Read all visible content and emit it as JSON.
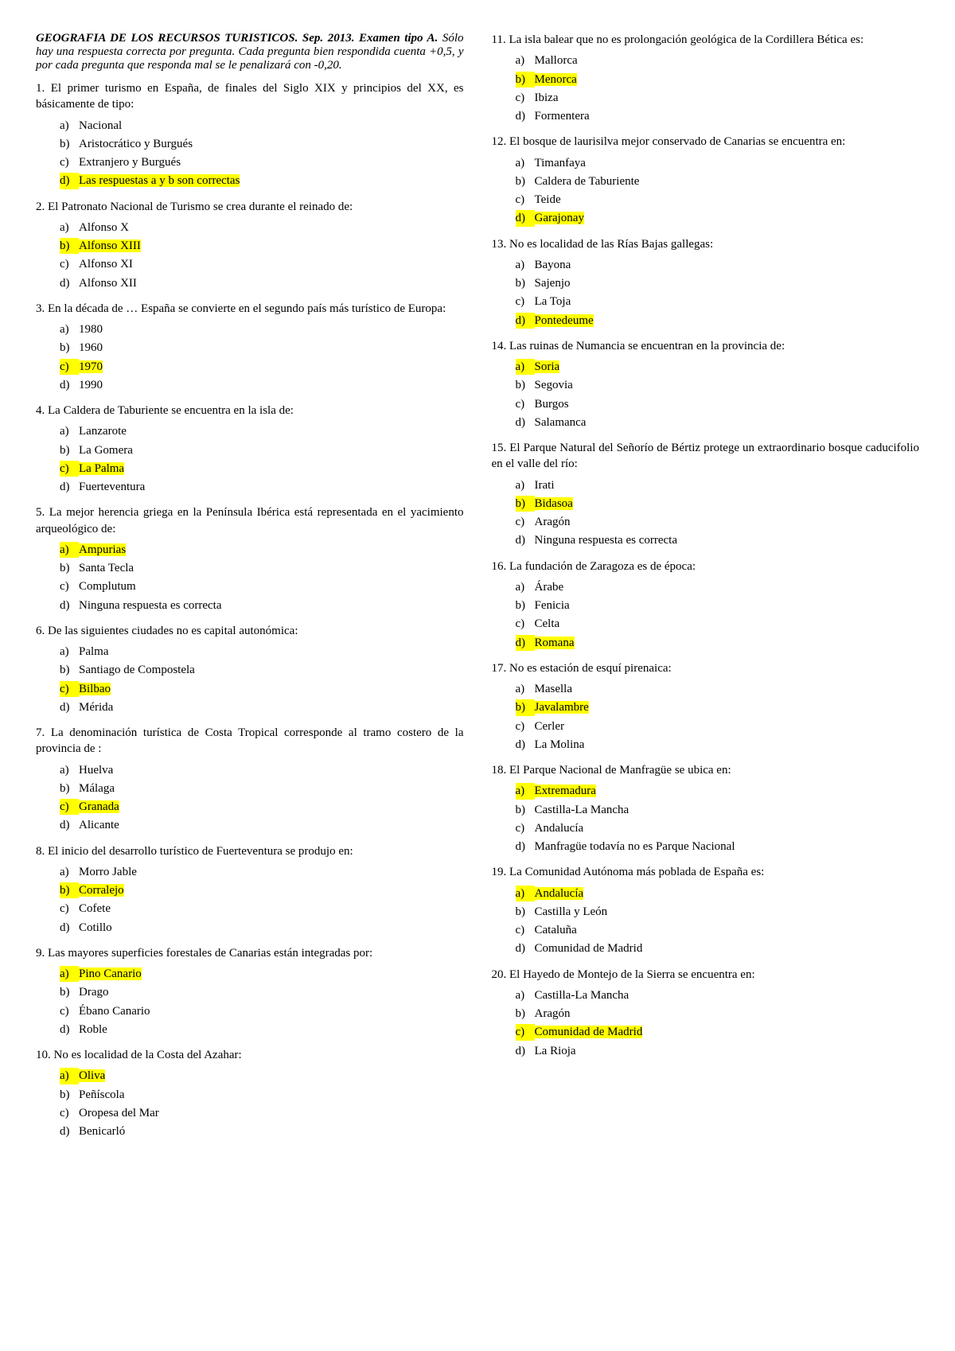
{
  "header": {
    "title": "GEOGRAFIA DE LOS RECURSOS TURISTICOS. Sep. 2013. Examen tipo A.",
    "instructions": " Sólo hay una respuesta correcta por pregunta. Cada pregunta bien respondida cuenta +0,5, y por cada pregunta que responda mal se le penalizará con -0,20."
  },
  "questions": [
    {
      "n": "1",
      "text": "El primer turismo en España, de finales del Siglo XIX y principios del XX, es básicamente de tipo:",
      "options": [
        {
          "l": "a)",
          "t": "Nacional",
          "h": false
        },
        {
          "l": "b)",
          "t": "Aristocrático y Burgués",
          "h": false
        },
        {
          "l": "c)",
          "t": "Extranjero y Burgués",
          "h": false
        },
        {
          "l": "d)",
          "t": "Las respuestas a y b son correctas",
          "h": true
        }
      ]
    },
    {
      "n": "2",
      "text": "El Patronato Nacional de Turismo se crea durante el reinado de:",
      "options": [
        {
          "l": "a)",
          "t": "Alfonso X",
          "h": false
        },
        {
          "l": "b)",
          "t": "Alfonso XIII",
          "h": true
        },
        {
          "l": "c)",
          "t": "Alfonso XI",
          "h": false
        },
        {
          "l": "d)",
          "t": "Alfonso XII",
          "h": false
        }
      ]
    },
    {
      "n": "3",
      "text": "En la década de … España se convierte en el segundo país más turístico de Europa:",
      "options": [
        {
          "l": "a)",
          "t": "1980",
          "h": false
        },
        {
          "l": "b)",
          "t": "1960",
          "h": false
        },
        {
          "l": "c)",
          "t": "1970",
          "h": true
        },
        {
          "l": "d)",
          "t": "1990",
          "h": false
        }
      ]
    },
    {
      "n": "4",
      "text": "La Caldera de Taburiente se encuentra en la isla de:",
      "options": [
        {
          "l": "a)",
          "t": "Lanzarote",
          "h": false
        },
        {
          "l": "b)",
          "t": "La Gomera",
          "h": false
        },
        {
          "l": "c)",
          "t": "La Palma",
          "h": true
        },
        {
          "l": "d)",
          "t": "Fuerteventura",
          "h": false
        }
      ]
    },
    {
      "n": "5",
      "text": "La mejor herencia griega en la Península Ibérica está representada en el yacimiento arqueológico de:",
      "options": [
        {
          "l": "a)",
          "t": "Ampurias",
          "h": true
        },
        {
          "l": "b)",
          "t": "Santa Tecla",
          "h": false
        },
        {
          "l": "c)",
          "t": "Complutum",
          "h": false
        },
        {
          "l": "d)",
          "t": "Ninguna respuesta es correcta",
          "h": false
        }
      ]
    },
    {
      "n": "6",
      "text": "De las siguientes ciudades no es capital autonómica:",
      "options": [
        {
          "l": "a)",
          "t": "Palma",
          "h": false
        },
        {
          "l": "b)",
          "t": "Santiago de Compostela",
          "h": false
        },
        {
          "l": "c)",
          "t": "Bilbao",
          "h": true
        },
        {
          "l": "d)",
          "t": "Mérida",
          "h": false
        }
      ]
    },
    {
      "n": "7",
      "text": "La denominación turística de Costa Tropical corresponde al tramo costero de la provincia de :",
      "options": [
        {
          "l": "a)",
          "t": "Huelva",
          "h": false
        },
        {
          "l": "b)",
          "t": "Málaga",
          "h": false
        },
        {
          "l": "c)",
          "t": "Granada",
          "h": true
        },
        {
          "l": "d)",
          "t": "Alicante",
          "h": false
        }
      ]
    },
    {
      "n": "8",
      "text": "El inicio del desarrollo turístico de Fuerteventura se produjo en:",
      "options": [
        {
          "l": "a)",
          "t": "Morro Jable",
          "h": false
        },
        {
          "l": "b)",
          "t": "Corralejo",
          "h": true
        },
        {
          "l": "c)",
          "t": "Cofete",
          "h": false
        },
        {
          "l": "d)",
          "t": "Cotillo",
          "h": false
        }
      ]
    },
    {
      "n": "9",
      "text": "Las mayores superficies forestales de Canarias están integradas por:",
      "options": [
        {
          "l": "a)",
          "t": "Pino Canario",
          "h": true
        },
        {
          "l": "b)",
          "t": "Drago",
          "h": false
        },
        {
          "l": "c)",
          "t": "Ébano Canario",
          "h": false
        },
        {
          "l": "d)",
          "t": "Roble",
          "h": false
        }
      ]
    },
    {
      "n": "10",
      "text": "No es localidad de la Costa del Azahar:",
      "options": [
        {
          "l": "a)",
          "t": "Oliva",
          "h": true
        },
        {
          "l": "b)",
          "t": "Peñíscola",
          "h": false
        },
        {
          "l": "c)",
          "t": "Oropesa del Mar",
          "h": false
        },
        {
          "l": "d)",
          "t": "Benicarló",
          "h": false
        }
      ]
    },
    {
      "n": "11",
      "text": "La isla balear que no es prolongación geológica de la Cordillera Bética es:",
      "options": [
        {
          "l": "a)",
          "t": "Mallorca",
          "h": false
        },
        {
          "l": "b)",
          "t": "Menorca",
          "h": true
        },
        {
          "l": "c)",
          "t": "Ibiza",
          "h": false
        },
        {
          "l": "d)",
          "t": "Formentera",
          "h": false
        }
      ]
    },
    {
      "n": "12",
      "text": "El bosque de laurisilva mejor conservado de Canarias se encuentra en:",
      "options": [
        {
          "l": "a)",
          "t": "Timanfaya",
          "h": false
        },
        {
          "l": "b)",
          "t": "Caldera de Taburiente",
          "h": false
        },
        {
          "l": "c)",
          "t": "Teide",
          "h": false
        },
        {
          "l": "d)",
          "t": "Garajonay",
          "h": true
        }
      ]
    },
    {
      "n": "13",
      "text": "No es localidad de las Rías Bajas gallegas:",
      "options": [
        {
          "l": "a)",
          "t": "Bayona",
          "h": false
        },
        {
          "l": "b)",
          "t": "Sajenjo",
          "h": false
        },
        {
          "l": "c)",
          "t": "La Toja",
          "h": false
        },
        {
          "l": "d)",
          "t": "Pontedeume",
          "h": true
        }
      ]
    },
    {
      "n": "14",
      "text": "Las ruinas de Numancia se encuentran en la provincia de:",
      "options": [
        {
          "l": "a)",
          "t": "Soria",
          "h": true
        },
        {
          "l": "b)",
          "t": "Segovia",
          "h": false
        },
        {
          "l": "c)",
          "t": "Burgos",
          "h": false
        },
        {
          "l": "d)",
          "t": "Salamanca",
          "h": false
        }
      ]
    },
    {
      "n": "15",
      "text": "El Parque Natural del Señorío de Bértiz protege un extraordinario bosque caducifolio en el valle del río:",
      "options": [
        {
          "l": "a)",
          "t": "Irati",
          "h": false
        },
        {
          "l": "b)",
          "t": "Bidasoa",
          "h": true
        },
        {
          "l": "c)",
          "t": "Aragón",
          "h": false
        },
        {
          "l": "d)",
          "t": "Ninguna respuesta es correcta",
          "h": false
        }
      ]
    },
    {
      "n": "16",
      "text": "La fundación de Zaragoza es de época:",
      "options": [
        {
          "l": "a)",
          "t": "Árabe",
          "h": false
        },
        {
          "l": "b)",
          "t": "Fenicia",
          "h": false
        },
        {
          "l": "c)",
          "t": "Celta",
          "h": false
        },
        {
          "l": "d)",
          "t": "Romana",
          "h": true
        }
      ]
    },
    {
      "n": "17",
      "text": "No es estación de esquí pirenaica:",
      "options": [
        {
          "l": "a)",
          "t": "Masella",
          "h": false
        },
        {
          "l": "b)",
          "t": "Javalambre",
          "h": true
        },
        {
          "l": "c)",
          "t": "Cerler",
          "h": false
        },
        {
          "l": "d)",
          "t": "La Molina",
          "h": false
        }
      ]
    },
    {
      "n": "18",
      "text": "El Parque Nacional de Manfragüe se ubica en:",
      "options": [
        {
          "l": "a)",
          "t": "Extremadura",
          "h": true
        },
        {
          "l": "b)",
          "t": "Castilla-La Mancha",
          "h": false
        },
        {
          "l": "c)",
          "t": "Andalucía",
          "h": false
        },
        {
          "l": "d)",
          "t": "Manfragüe todavía no es Parque Nacional",
          "h": false
        }
      ]
    },
    {
      "n": "19",
      "text": "La Comunidad Autónoma más poblada de España es:",
      "options": [
        {
          "l": "a)",
          "t": "Andalucía",
          "h": true
        },
        {
          "l": "b)",
          "t": "Castilla y León",
          "h": false
        },
        {
          "l": "c)",
          "t": "Cataluña",
          "h": false
        },
        {
          "l": "d)",
          "t": "Comunidad de Madrid",
          "h": false
        }
      ]
    },
    {
      "n": "20",
      "text": "El Hayedo de Montejo de la Sierra se encuentra en:",
      "options": [
        {
          "l": "a)",
          "t": "Castilla-La Mancha",
          "h": false
        },
        {
          "l": "b)",
          "t": "Aragón",
          "h": false
        },
        {
          "l": "c)",
          "t": "Comunidad de Madrid",
          "h": true
        },
        {
          "l": "d)",
          "t": "La Rioja",
          "h": false
        }
      ]
    }
  ]
}
